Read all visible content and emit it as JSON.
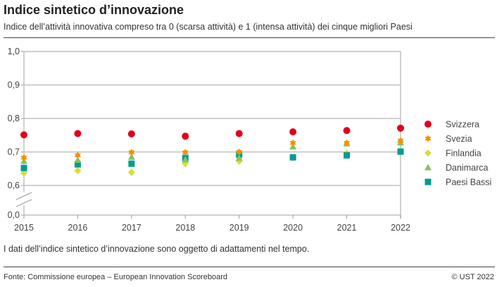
{
  "title": "Indice sintetico d’innovazione",
  "subtitle": "Indice dell’attività innovativa compreso tra 0 (scarsa attività) e 1 (intensa attività) dei cinque migliori Paesi",
  "note": "I dati dell’indice sintetico d’innovazione sono oggetto di adattamenti nel tempo.",
  "source": "Fonte: Commissione europea – European Innovation Scoreboard",
  "copyright": "© UST 2022",
  "chart_data": {
    "type": "scatter",
    "title": "Indice sintetico d’innovazione",
    "x": [
      2015,
      2016,
      2017,
      2018,
      2019,
      2020,
      2021,
      2022
    ],
    "x_tick_labels": [
      "2015",
      "2016",
      "2017",
      "2018",
      "2019",
      "2020",
      "2021",
      "2022"
    ],
    "y_ticks": [
      0.0,
      0.6,
      0.7,
      0.8,
      0.9,
      1.0
    ],
    "y_tick_labels": [
      "0,0",
      "0,6",
      "0,7",
      "0,8",
      "0,9",
      "1,0"
    ],
    "ylim": [
      0.0,
      1.0
    ],
    "axis_break": [
      0.0,
      0.6
    ],
    "grid": "horizontal",
    "legend_position": "right",
    "series": [
      {
        "name": "Svizzera",
        "marker": "circle",
        "color": "#e2001a",
        "values": [
          0.751,
          0.755,
          0.754,
          0.747,
          0.755,
          0.76,
          0.764,
          0.771
        ]
      },
      {
        "name": "Svezia",
        "marker": "star",
        "color": "#f39200",
        "values": [
          0.683,
          0.69,
          0.699,
          0.699,
          0.7,
          0.727,
          0.727,
          0.734
        ]
      },
      {
        "name": "Finlandia",
        "marker": "diamond",
        "color": "#d5df3a",
        "values": [
          0.637,
          0.644,
          0.639,
          0.665,
          0.672,
          0.683,
          0.696,
          0.73
        ]
      },
      {
        "name": "Danimarca",
        "marker": "triangle",
        "color": "#86c25f",
        "values": [
          0.673,
          0.676,
          0.685,
          0.677,
          0.682,
          0.716,
          0.725,
          0.728
        ]
      },
      {
        "name": "Paesi Bassi",
        "marker": "square",
        "color": "#009c8f",
        "values": [
          0.652,
          0.663,
          0.665,
          0.682,
          0.692,
          0.684,
          0.69,
          0.701
        ]
      }
    ]
  }
}
